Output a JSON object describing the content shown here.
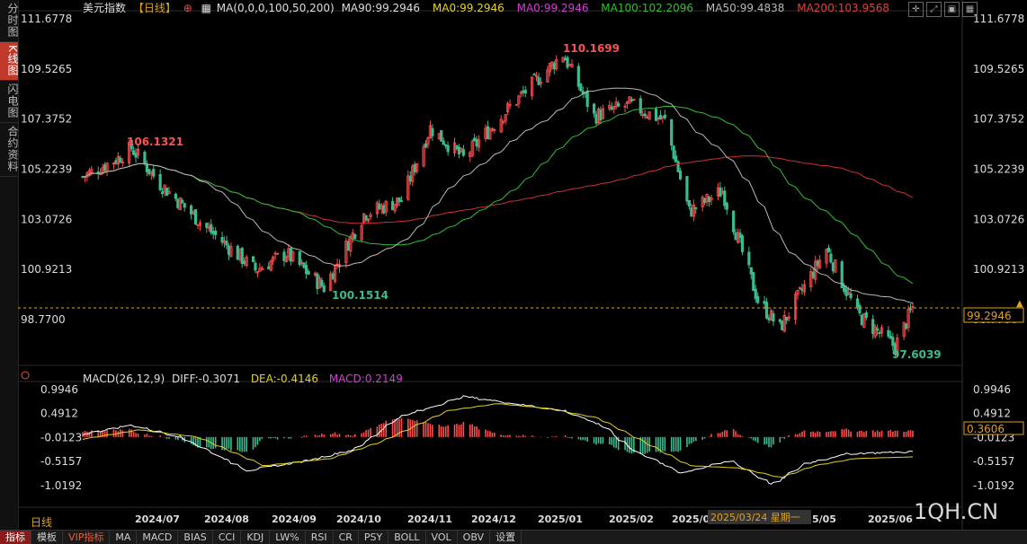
{
  "left_tabs": [
    {
      "label": "分时图",
      "active": false
    },
    {
      "label": "K线图",
      "active": true
    },
    {
      "label": "闪电图",
      "active": false
    },
    {
      "label": "合约资料",
      "active": false
    }
  ],
  "toolbar_icons": [
    "crosshair-icon",
    "expand-icon",
    "window-icon",
    "grid-icon"
  ],
  "header": {
    "instrument": "美元指数",
    "period_tag": "【日线】",
    "ma_params": "MA(0,0,0,100,50,200)",
    "ma90": "MA90:99.2946",
    "ma0_1": "MA0:99.2946",
    "ma0_2": "MA0:99.2946",
    "ma100": "MA100:102.2096",
    "ma50": "MA50:99.4838",
    "ma200": "MA200:103.9568"
  },
  "macd_header": {
    "params": "MACD(26,12,9)",
    "diff": "DIFF:-0.3071",
    "dea": "DEA:-0.4146",
    "macd": "MACD:0.2149"
  },
  "price_axis": {
    "ticks": [
      "111.6778",
      "109.5265",
      "107.3752",
      "105.2239",
      "103.0726",
      "100.9213",
      "98.7700"
    ],
    "current_price": "99.2946"
  },
  "macd_axis": {
    "ticks": [
      "0.9946",
      "0.4912",
      "-0.0123",
      "-0.5157",
      "-1.0192"
    ],
    "current_value": "0.3606"
  },
  "annotations": {
    "high_1": "106.1321",
    "low_1": "100.1514",
    "high_2": "110.1699",
    "low_2": "97.6039"
  },
  "x_axis": {
    "ticks": [
      "2024/07",
      "2024/08",
      "2024/09",
      "2024/10",
      "2024/11",
      "2024/12",
      "2025/01",
      "2025/02",
      "2025/03",
      "2025/05",
      "2025/06"
    ],
    "crosshair_label": "2025/03/24 星期一"
  },
  "period_label": "日线",
  "bottom_tabs": [
    "指标",
    "模板",
    "VIP指标",
    "MA",
    "MACD",
    "BIAS",
    "CCI",
    "KDJ",
    "LW%",
    "RSI",
    "CR",
    "PSY",
    "BOLL",
    "VOL",
    "OBV",
    "设置"
  ],
  "watermark": "1QH.CN",
  "colors": {
    "up": "#ff4d4d",
    "down": "#3cbc8d",
    "ma100": "#30c030",
    "ma50": "#b8b8b8",
    "ma200": "#d03030",
    "diff": "#ffffff",
    "dea": "#e6d020",
    "macd_label": "#d040d0",
    "dea_label": "#e6d020",
    "current_line": "#e0a020"
  },
  "chart_data": [
    {
      "type": "candlestick",
      "title": "美元指数 日线",
      "ylim": [
        98.77,
        111.6778
      ],
      "x_range": [
        "2024-06-10",
        "2025-06-20"
      ],
      "ohlc_anchors": [
        {
          "date": "2024-06-10",
          "close": 104.9
        },
        {
          "date": "2024-06-26",
          "close": 105.7
        },
        {
          "date": "2024-07-02",
          "close": 106.1321
        },
        {
          "date": "2024-07-15",
          "close": 104.6
        },
        {
          "date": "2024-08-05",
          "close": 102.7
        },
        {
          "date": "2024-08-27",
          "close": 100.9
        },
        {
          "date": "2024-09-10",
          "close": 101.6
        },
        {
          "date": "2024-09-27",
          "close": 100.1514
        },
        {
          "date": "2024-10-15",
          "close": 103.3
        },
        {
          "date": "2024-11-01",
          "close": 103.9
        },
        {
          "date": "2024-11-14",
          "close": 107.0
        },
        {
          "date": "2024-11-29",
          "close": 105.7
        },
        {
          "date": "2024-12-20",
          "close": 107.9
        },
        {
          "date": "2025-01-13",
          "close": 110.1699
        },
        {
          "date": "2025-01-27",
          "close": 107.5
        },
        {
          "date": "2025-02-12",
          "close": 108.0
        },
        {
          "date": "2025-02-28",
          "close": 107.3
        },
        {
          "date": "2025-03-11",
          "close": 103.4
        },
        {
          "date": "2025-03-26",
          "close": 104.3
        },
        {
          "date": "2025-04-11",
          "close": 99.6
        },
        {
          "date": "2025-04-21",
          "close": 98.4
        },
        {
          "date": "2025-05-12",
          "close": 101.8
        },
        {
          "date": "2025-05-26",
          "close": 99.0
        },
        {
          "date": "2025-06-12",
          "close": 97.6039
        },
        {
          "date": "2025-06-20",
          "close": 99.2946
        }
      ],
      "series": [
        {
          "name": "MA100",
          "values_at_anchors_end": 102.2096
        },
        {
          "name": "MA50",
          "values_at_anchors_end": 99.4838
        },
        {
          "name": "MA200",
          "values_at_anchors_end": 103.9568
        }
      ]
    },
    {
      "type": "bar",
      "title": "MACD(26,12,9)",
      "ylim": [
        -1.0192,
        0.9946
      ],
      "diff_anchors": [
        [
          0,
          0.05
        ],
        [
          0.06,
          0.25
        ],
        [
          0.12,
          0.0
        ],
        [
          0.2,
          -0.7
        ],
        [
          0.27,
          -0.5
        ],
        [
          0.33,
          -0.25
        ],
        [
          0.38,
          0.4
        ],
        [
          0.46,
          0.85
        ],
        [
          0.52,
          0.7
        ],
        [
          0.58,
          0.55
        ],
        [
          0.63,
          0.2
        ],
        [
          0.66,
          -0.25
        ],
        [
          0.72,
          -0.75
        ],
        [
          0.78,
          -0.5
        ],
        [
          0.83,
          -1.0
        ],
        [
          0.87,
          -0.55
        ],
        [
          0.92,
          -0.35
        ],
        [
          1.0,
          -0.3071
        ]
      ],
      "dea_anchors": [
        [
          0,
          -0.05
        ],
        [
          0.07,
          0.15
        ],
        [
          0.14,
          0.0
        ],
        [
          0.22,
          -0.6
        ],
        [
          0.3,
          -0.45
        ],
        [
          0.36,
          -0.1
        ],
        [
          0.44,
          0.55
        ],
        [
          0.5,
          0.7
        ],
        [
          0.56,
          0.6
        ],
        [
          0.62,
          0.4
        ],
        [
          0.67,
          -0.05
        ],
        [
          0.73,
          -0.6
        ],
        [
          0.79,
          -0.65
        ],
        [
          0.84,
          -0.85
        ],
        [
          0.88,
          -0.6
        ],
        [
          0.93,
          -0.45
        ],
        [
          1.0,
          -0.4146
        ]
      ],
      "current_macd": 0.2149
    }
  ]
}
